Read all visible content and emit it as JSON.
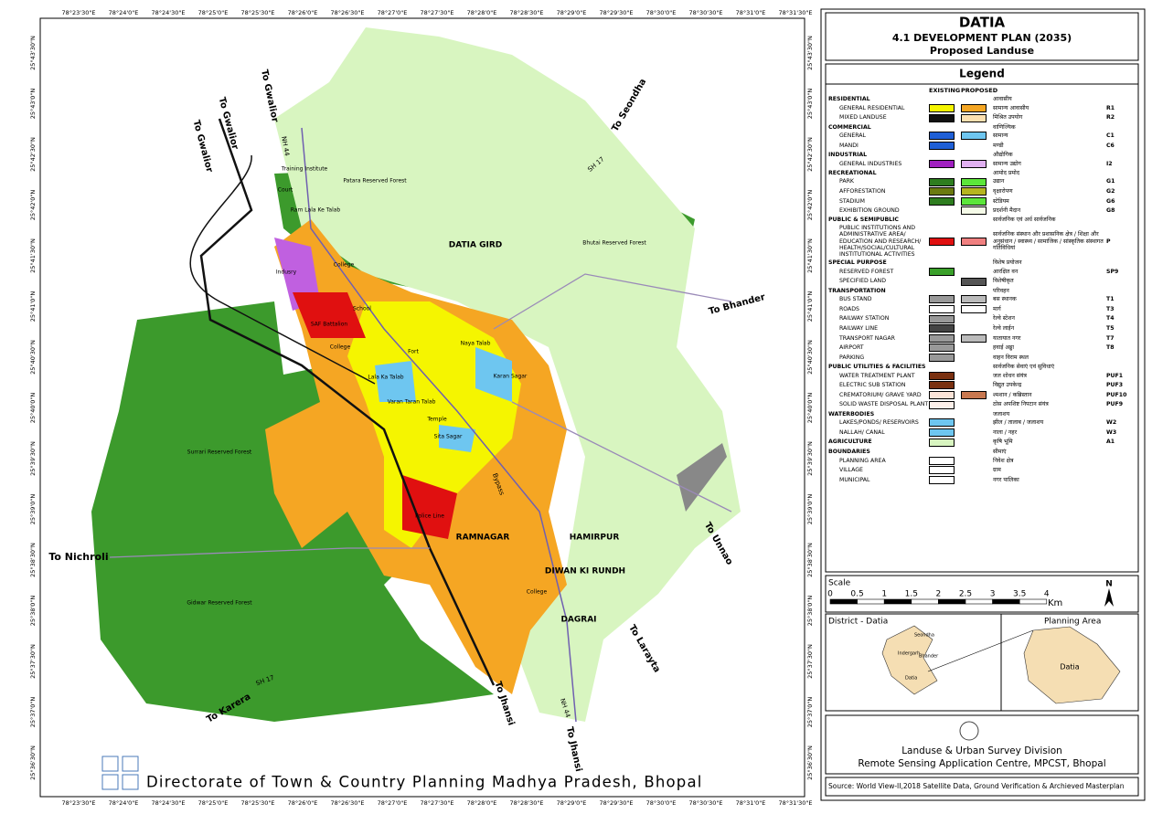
{
  "header": {
    "title": "DATIA",
    "plan": "4.1 DEVELOPMENT PLAN (2035)",
    "subtitle": "Proposed Landuse"
  },
  "legend": {
    "title": "Legend",
    "columns": [
      "EXISTING",
      "PROPOSED"
    ],
    "groups": [
      {
        "heading": "RESIDENTIAL",
        "heading_hi": "आवासीय",
        "items": [
          {
            "label": "GENERAL RESIDENTIAL",
            "label_hi": "सामान्य आवासीय",
            "code": "R1",
            "existing": "#f5f500",
            "proposed": "#f5a623"
          },
          {
            "label": "MIXED LANDUSE",
            "label_hi": "मिश्रित उपयोग",
            "code": "R2",
            "existing": "#111111",
            "proposed": "#fde0b0"
          }
        ]
      },
      {
        "heading": "COMMERCIAL",
        "heading_hi": "वाणिज्यिक",
        "items": [
          {
            "label": "GENERAL",
            "label_hi": "सामान्य",
            "code": "C1",
            "existing": "#1f5fd6",
            "proposed": "#6ec6f0"
          },
          {
            "label": "MANDI",
            "label_hi": "मण्डी",
            "code": "C6",
            "existing": "#1f5fd6"
          }
        ]
      },
      {
        "heading": "INDUSTRIAL",
        "heading_hi": "औद्योगिक",
        "items": [
          {
            "label": "GENERAL INDUSTRIES",
            "label_hi": "सामान्य उद्योग",
            "code": "I2",
            "existing": "#a020c0",
            "proposed": "#e0b0f0"
          }
        ]
      },
      {
        "heading": "RECREATIONAL",
        "heading_hi": "आमोद प्रमोद",
        "items": [
          {
            "label": "PARK",
            "label_hi": "उद्यान",
            "code": "G1",
            "existing": "#2e7d1f",
            "proposed": "#5ce63a"
          },
          {
            "label": "AFFORESTATION",
            "label_hi": "वृक्षारोपण",
            "code": "G2",
            "existing": "#6b7a10",
            "proposed": "#b5b520"
          },
          {
            "label": "STADIUM",
            "label_hi": "स्टेडियम",
            "code": "G6",
            "existing": "#2e7d1f",
            "proposed": "#5ce63a"
          },
          {
            "label": "EXHIBITION GROUND",
            "label_hi": "प्रदर्शनी मैदान",
            "code": "G8",
            "proposed": "#f5fbe8"
          }
        ]
      },
      {
        "heading": "PUBLIC & SEMIPUBLIC",
        "heading_hi": "सार्वजनिक एवं अर्ध सार्वजनिक",
        "items": [
          {
            "label": "PUBLIC INSTITUTIONS AND ADMINISTRATIVE AREA/ EDUCATION AND RESEARCH/ HEALTH/SOCIAL/CULTURAL INSTITUTIONAL ACTIVITIES",
            "label_hi": "सार्वजनिक संस्थान और प्रशासनिक क्षेत्र / शिक्षा और अनुसंधान / स्वास्थ्य / सामाजिक / सांस्कृतिक संस्थागत गतिविधियां",
            "code": "P",
            "existing": "#e01010",
            "proposed": "#f08080"
          }
        ]
      },
      {
        "heading": "SPECIAL PURPOSE",
        "heading_hi": "विशेष प्रयोजन",
        "items": [
          {
            "label": "RESERVED FOREST",
            "label_hi": "आरक्षित वन",
            "code": "SP9",
            "existing": "#3aa02a"
          },
          {
            "label": "SPECIFIED LAND",
            "label_hi": "विशेषीकृत",
            "proposed": "#555555"
          }
        ]
      },
      {
        "heading": "TRANSPORTATION",
        "heading_hi": "परिवहन",
        "items": [
          {
            "label": "BUS STAND",
            "label_hi": "बस स्थानक",
            "code": "T1",
            "existing": "#999999",
            "proposed": "#bbbbbb"
          },
          {
            "label": "ROADS",
            "label_hi": "मार्ग",
            "code": "T3",
            "existing": "#ffffff",
            "proposed": "#ffffff"
          },
          {
            "label": "RAILWAY STATION",
            "label_hi": "रेल्वे स्टेशन",
            "code": "T4",
            "existing": "#999999"
          },
          {
            "label": "RAILWAY LINE",
            "label_hi": "रेल्वे लाईन",
            "code": "T5",
            "existing": "#444444"
          },
          {
            "label": "TRANSPORT NAGAR",
            "label_hi": "यातायात नगर",
            "code": "T7",
            "existing": "#999999",
            "proposed": "#bbbbbb"
          },
          {
            "label": "AIRPORT",
            "label_hi": "हवाई अड्डा",
            "code": "T8",
            "existing": "#999999"
          },
          {
            "label": "PARKING",
            "label_hi": "वाहन विराम स्थल",
            "existing": "#999999"
          }
        ]
      },
      {
        "heading": "PUBLIC UTILITIES & FACILITIES",
        "heading_hi": "सार्वजनिक सेवाएं एवं सुविधाएं",
        "items": [
          {
            "label": "WATER TREATMENT PLANT",
            "label_hi": "जल शोधन संयंत्र",
            "code": "PUF1",
            "existing": "#7a3010"
          },
          {
            "label": "ELECTRIC SUB STATION",
            "label_hi": "विद्युत उपकेन्द्र",
            "code": "PUF3",
            "existing": "#7a3010"
          },
          {
            "label": "CREMATORIUM/ GRAVE YARD",
            "label_hi": "श्मशान / कब्रिस्तान",
            "code": "PUF10",
            "existing": "#fce4d8",
            "proposed": "#c87850"
          },
          {
            "label": "SOLID WASTE DISPOSAL PLANT",
            "label_hi": "ठोस अपशिष्ट निपटान संयंत्र",
            "code": "PUF9",
            "existing": "#fdf0ea"
          }
        ]
      },
      {
        "heading": "WATERBODIES",
        "heading_hi": "जलाशय",
        "items": [
          {
            "label": "LAKES/PONDS/ RESERVOIRS",
            "label_hi": "झील / तालाब / जलाशय",
            "code": "W2",
            "existing": "#6ec6f0"
          },
          {
            "label": "NALLAH/ CANAL",
            "label_hi": "नाला / नहर",
            "code": "W3",
            "existing": "#6ec6f0"
          }
        ]
      },
      {
        "heading": "AGRICULTURE",
        "heading_hi": "कृषि भूमि",
        "code": "A1",
        "existing": "#d8f5c0",
        "items": []
      },
      {
        "heading": "BOUNDARIES",
        "heading_hi": "सीमाएं",
        "items": [
          {
            "label": "PLANNING AREA",
            "label_hi": "निवेश क्षेत्र",
            "existing": "#ffffff"
          },
          {
            "label": "VILLAGE",
            "label_hi": "ग्राम",
            "existing": "#ffffff"
          },
          {
            "label": "MUNICIPAL",
            "label_hi": "नगर पालिका",
            "existing": "#ffffff"
          }
        ]
      }
    ]
  },
  "scale": {
    "title": "Scale",
    "ticks": [
      "0",
      "0.5",
      "1",
      "1.5",
      "2",
      "2.5",
      "3",
      "3.5",
      "4"
    ],
    "unit": "Km",
    "north": "N"
  },
  "inset": {
    "district": "District - Datia",
    "planning": "Planning Area",
    "towns": [
      "Seondha",
      "Indergarh",
      "Bhander",
      "Datia"
    ],
    "area_label": "Datia"
  },
  "credits": {
    "division": "Landuse & Urban Survey Division",
    "centre": "Remote Sensing Application Centre, MPCST, Bhopal",
    "source": "Source: World View-II,2018 Satellite Data, Ground Verification & Archieved Masterplan"
  },
  "footer": "Directorate of Town & Country Planning Madhya Pradesh, Bhopal",
  "coords": {
    "top": [
      "78°23'30\"E",
      "78°24'0\"E",
      "78°24'30\"E",
      "78°25'0\"E",
      "78°25'30\"E",
      "78°26'0\"E",
      "78°26'30\"E",
      "78°27'0\"E",
      "78°27'30\"E",
      "78°28'0\"E",
      "78°28'30\"E",
      "78°29'0\"E",
      "78°29'30\"E",
      "78°30'0\"E",
      "78°30'30\"E",
      "78°31'0\"E",
      "78°31'30\"E"
    ],
    "left": [
      "25°43'30\"N",
      "25°43'0\"N",
      "25°42'30\"N",
      "25°42'0\"N",
      "25°41'30\"N",
      "25°41'0\"N",
      "25°40'30\"N",
      "25°40'0\"N",
      "25°39'30\"N",
      "25°39'0\"N",
      "25°38'30\"N",
      "25°38'0\"N",
      "25°37'30\"N",
      "25°37'0\"N",
      "25°36'30\"N"
    ]
  },
  "map_labels": [
    "To Gwalior",
    "To Gwalior",
    "To Gwalior",
    "To Seondha",
    "SH 17",
    "NH 44",
    "Patara Reserved Forest",
    "DATIA GIRD",
    "Bhutai Reserved Forest",
    "To Bhander",
    "Ram Lala Ke Talab",
    "Indusry",
    "College",
    "School",
    "SAF Battalion",
    "College",
    "Fort",
    "Naya Talab",
    "Karan Sagar",
    "Lala Ka Talab",
    "Varan Taran Talab",
    "Temple",
    "Sita Sagar",
    "Bypass",
    "Surrari Reserved Forest",
    "Police Line",
    "RAMNAGAR",
    "HAMIRPUR",
    "DIWAN KI RUNDH",
    "To Unnao",
    "To Nichroli",
    "College",
    "DAGRAI",
    "Gidwar Reserved Forest",
    "To Larayta",
    "SH 17",
    "To Karera",
    "To Jhansi",
    "NH 44",
    "To Jhansi",
    "Training Institute",
    "Court"
  ]
}
